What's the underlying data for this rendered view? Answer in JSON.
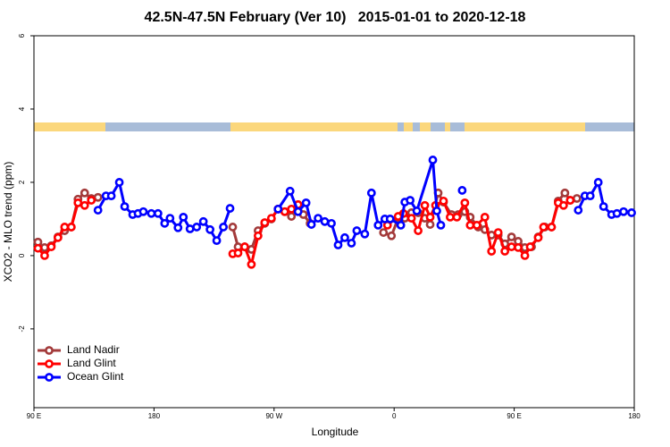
{
  "chart_data": {
    "type": "line",
    "title": "42.5N-47.5N February (Ver 10)   2015-01-01 to 2020-12-18",
    "xlabel": "Longitude",
    "ylabel": "XCO2 - MLO trend (ppm)",
    "xlim": [
      90,
      540
    ],
    "xticks": [
      {
        "value": 90,
        "label": "90 E"
      },
      180,
      {
        "value": 270,
        "label": "90 W"
      },
      {
        "value": 360,
        "label": "0"
      },
      {
        "value": 450,
        "label": "90 E"
      },
      {
        "value": 540,
        "label": "180"
      }
    ],
    "ylim": [
      -4.15,
      6
    ],
    "yticks": [
      6,
      4,
      2,
      0,
      -2
    ],
    "legend": "bottom-left",
    "series": [
      {
        "name": "Land Nadir",
        "color": "#a33a3a",
        "x": [
          93,
          98,
          103,
          108,
          113,
          118,
          123,
          128,
          133,
          138,
          null,
          239,
          243,
          248,
          253,
          258,
          263,
          268,
          273,
          278,
          283,
          288,
          292,
          297,
          null,
          352,
          358,
          363,
          368,
          373,
          378,
          383,
          387,
          393,
          397,
          403,
          408,
          413,
          417,
          423,
          428,
          433,
          438,
          443,
          448,
          453,
          458,
          463,
          468,
          473,
          478,
          483,
          488,
          492,
          497
        ],
        "values": [
          0.37,
          0.22,
          0.27,
          0.51,
          0.68,
          0.78,
          1.54,
          1.71,
          1.56,
          1.59,
          null,
          0.78,
          0.24,
          0.24,
          0.17,
          0.68,
          0.88,
          1.0,
          1.27,
          1.2,
          1.07,
          1.39,
          1.12,
          0.88,
          null,
          0.63,
          0.54,
          1.02,
          1.02,
          1.17,
          1.17,
          1.02,
          0.85,
          1.71,
          1.46,
          1.12,
          1.12,
          1.2,
          1.05,
          0.78,
          0.71,
          0.56,
          0.56,
          0.32,
          0.51,
          0.39,
          0.22,
          0.24,
          0.51,
          0.78,
          0.78,
          1.49,
          1.71,
          1.51,
          1.56
        ]
      },
      {
        "name": "Land Glint",
        "color": "#ff0000",
        "x": [
          93,
          98,
          103,
          108,
          113,
          118,
          123,
          128,
          133,
          null,
          239,
          243,
          248,
          253,
          258,
          263,
          268,
          273,
          278,
          283,
          288,
          null,
          355,
          363,
          367,
          373,
          378,
          383,
          387,
          391,
          397,
          402,
          407,
          413,
          417,
          422,
          428,
          433,
          438,
          443,
          448,
          453,
          458,
          462,
          468,
          472,
          478,
          483,
          487,
          492
        ],
        "values": [
          0.2,
          0.0,
          0.24,
          0.49,
          0.78,
          0.78,
          1.44,
          1.37,
          1.51,
          null,
          0.05,
          0.07,
          0.24,
          -0.24,
          0.54,
          0.9,
          1.02,
          1.27,
          1.2,
          1.27,
          1.39,
          null,
          0.83,
          1.07,
          1.15,
          1.02,
          0.68,
          1.37,
          1.05,
          1.37,
          1.49,
          1.05,
          1.05,
          1.44,
          0.83,
          0.83,
          1.05,
          0.12,
          0.63,
          0.12,
          0.24,
          0.22,
          0.0,
          0.24,
          0.49,
          0.78,
          0.78,
          1.44,
          1.37,
          1.51
        ]
      },
      {
        "name": "Ocean Glint",
        "color": "#0000ff",
        "x": [
          138,
          144,
          148,
          154,
          158,
          164,
          168,
          172,
          178,
          183,
          188,
          192,
          198,
          202,
          207,
          212,
          217,
          222,
          227,
          232,
          237,
          null,
          273,
          282,
          288,
          294,
          298,
          303,
          308,
          313,
          318,
          323,
          328,
          332,
          338,
          343,
          348,
          353,
          357,
          365,
          368,
          372,
          377,
          389,
          392,
          395,
          null,
          411,
          null,
          498,
          503,
          507,
          513,
          517,
          523,
          527,
          532,
          538
        ],
        "values": [
          1.24,
          1.63,
          1.63,
          2.0,
          1.34,
          1.12,
          1.15,
          1.2,
          1.15,
          1.15,
          0.88,
          1.02,
          0.76,
          1.05,
          0.73,
          0.78,
          0.93,
          0.71,
          0.41,
          0.78,
          1.29,
          null,
          1.27,
          1.76,
          1.2,
          1.44,
          0.85,
          1.02,
          0.93,
          0.88,
          0.29,
          0.49,
          0.34,
          0.68,
          0.59,
          1.71,
          0.83,
          1.0,
          1.0,
          0.83,
          1.46,
          1.51,
          1.22,
          2.61,
          1.22,
          0.83,
          null,
          1.78,
          null,
          1.24,
          1.63,
          1.63,
          2.0,
          1.34,
          1.12,
          1.15,
          1.2,
          1.17
        ]
      }
    ]
  }
}
